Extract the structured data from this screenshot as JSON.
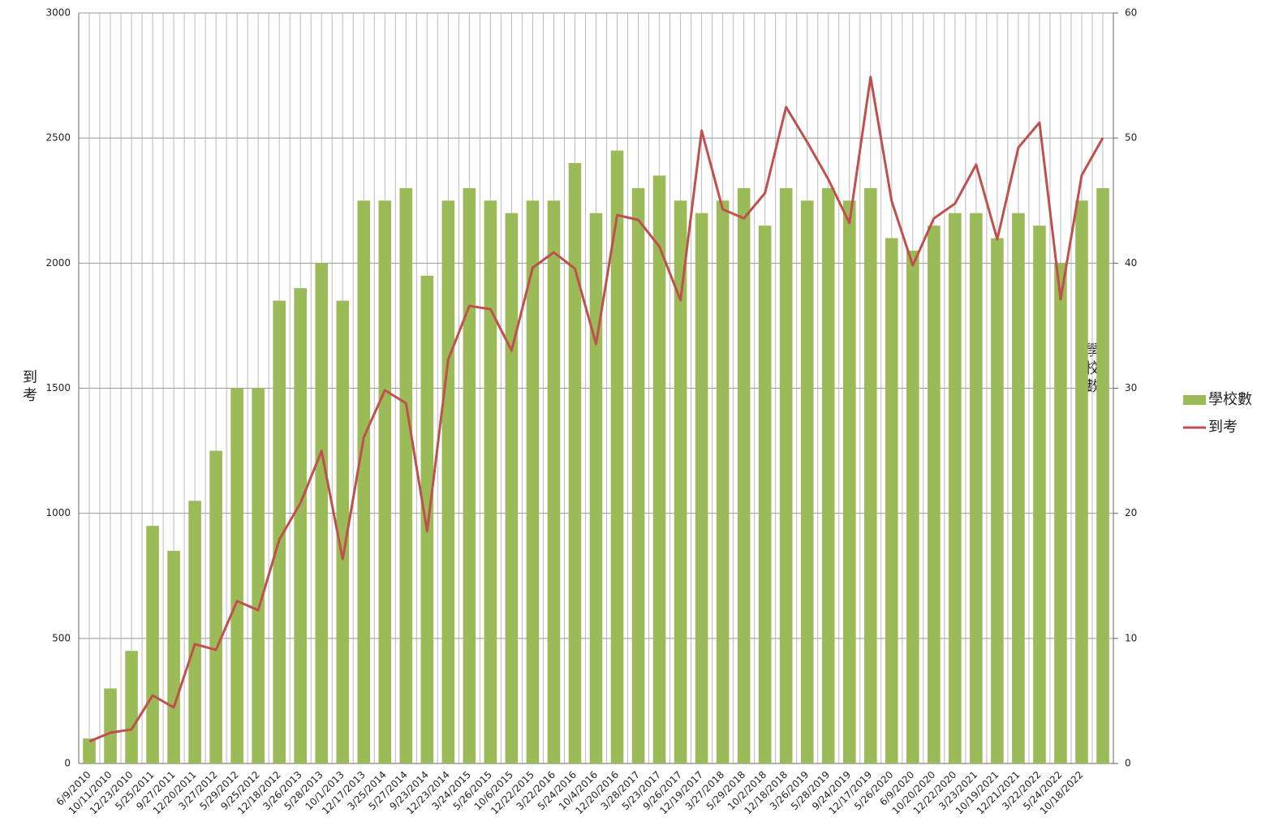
{
  "chart_data": {
    "type": "bar_line",
    "y_label": "到考",
    "y2_label": "學校數",
    "categories": [
      "6/9/2010",
      "10/11/2010",
      "12/23/2010",
      "5/25/2011",
      "9/27/2011",
      "12/20/2011",
      "3/27/2012",
      "5/29/2012",
      "9/25/2012",
      "12/18/2012",
      "3/26/2013",
      "5/28/2013",
      "10/1/2013",
      "12/17/2013",
      "3/25/2014",
      "5/27/2014",
      "9/23/2014",
      "12/23/2014",
      "3/24/2015",
      "5/26/2015",
      "10/6/2015",
      "12/22/2015",
      "3/22/2016",
      "5/24/2016",
      "10/4/2016",
      "12/20/2016",
      "3/28/2017",
      "5/23/2017",
      "9/26/2017",
      "12/19/2017",
      "3/27/2018",
      "5/29/2018",
      "10/2/2018",
      "12/18/2018",
      "3/26/2019",
      "5/28/2019",
      "9/24/2019",
      "12/17/2019",
      "5/26/2020",
      "6/9/2020",
      "10/20/2020",
      "12/22/2020",
      "3/23/2021",
      "10/19/2021",
      "12/21/2021",
      "3/22/2022",
      "5/24/2022",
      "10/18/2022",
      null
    ],
    "series": [
      {
        "name": "學校數",
        "type": "bar",
        "axis": "y2",
        "color": "#9bbb59",
        "values": [
          2,
          6,
          9,
          19,
          17,
          21,
          25,
          30,
          30,
          37,
          38,
          40,
          37,
          45,
          45,
          46,
          39,
          45,
          46,
          45,
          44,
          45,
          45,
          48,
          44,
          49,
          46,
          47,
          45,
          44,
          45,
          46,
          43,
          46,
          45,
          46,
          45,
          46,
          42,
          41,
          43,
          44,
          44,
          42,
          44,
          43,
          40,
          45,
          46
        ]
      },
      {
        "name": "到考",
        "type": "line",
        "axis": "y",
        "color": "#c0504d",
        "values": [
          88,
          123,
          136,
          272,
          224,
          477,
          454,
          649,
          613,
          895,
          1041,
          1249,
          817,
          1304,
          1492,
          1440,
          928,
          1615,
          1829,
          1816,
          1651,
          1982,
          2043,
          1978,
          1677,
          2192,
          2173,
          2066,
          1852,
          2530,
          2215,
          2179,
          2280,
          2624,
          2484,
          2335,
          2160,
          2744,
          2248,
          1991,
          2179,
          2238,
          2394,
          2095,
          2462,
          2562,
          1855,
          2351,
          2501
        ]
      }
    ],
    "ylim": [
      0,
      3000
    ],
    "yticks": [
      0,
      500,
      1000,
      1500,
      2000,
      2500,
      3000
    ],
    "y2lim": [
      0,
      60
    ],
    "y2ticks": [
      0,
      10,
      20,
      30,
      40,
      50,
      60
    ],
    "grid": true,
    "legend": "right"
  }
}
